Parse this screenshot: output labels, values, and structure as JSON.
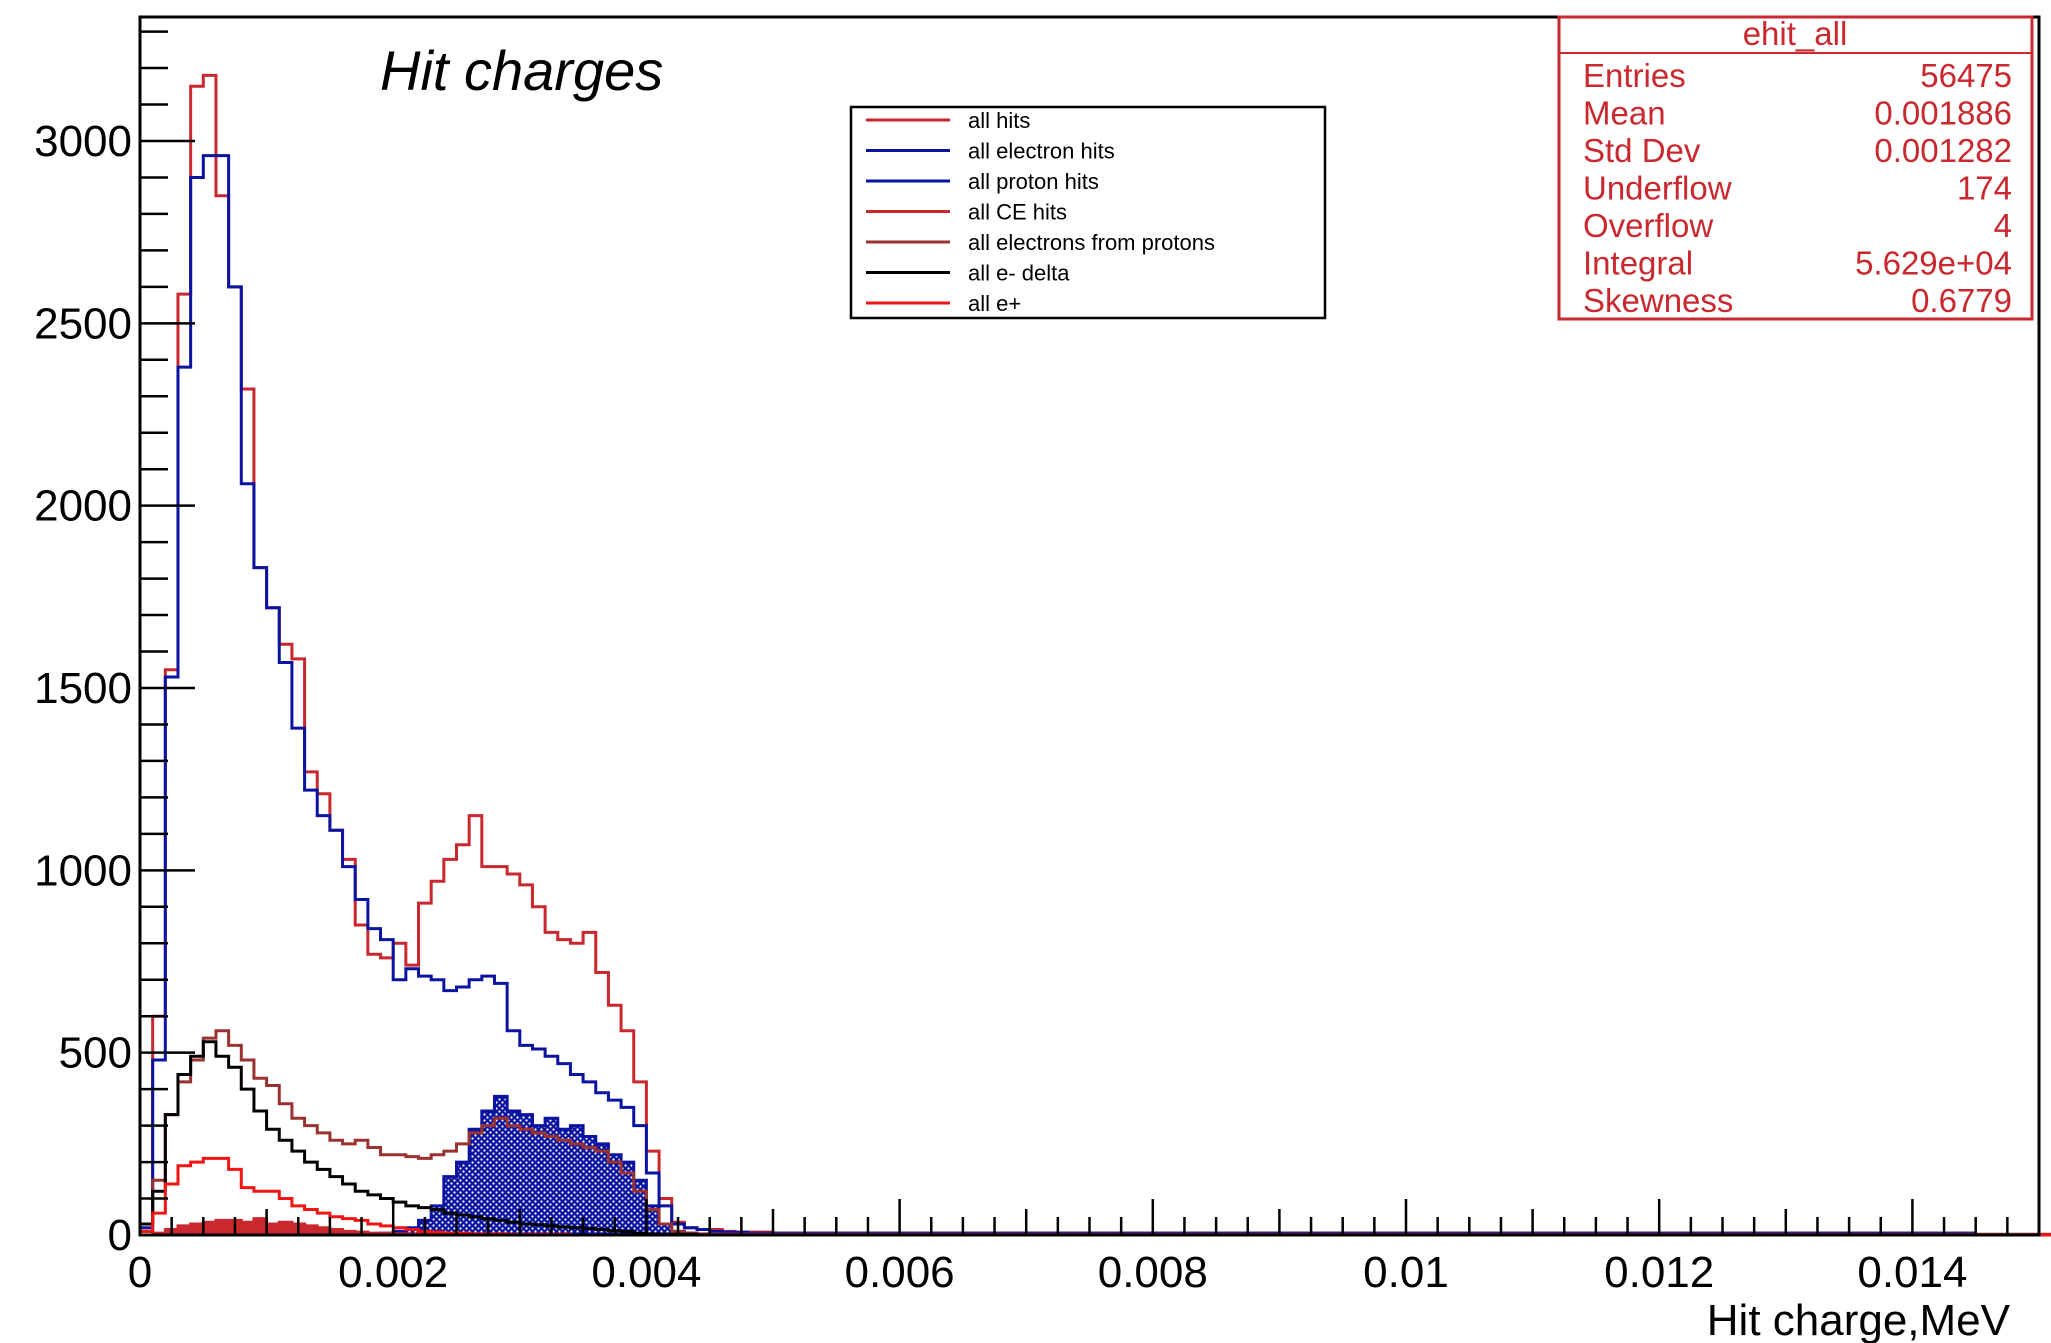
{
  "chart_data": {
    "type": "histogram",
    "title": "Hit charges",
    "xlabel": "Hit charge,MeV",
    "ylabel": "",
    "xlim": [
      0,
      0.015
    ],
    "ylim": [
      0,
      3340
    ],
    "bin_width": 0.0001,
    "x_ticks": [
      {
        "value": 0,
        "label": "0"
      },
      {
        "value": 0.002,
        "label": "0.002"
      },
      {
        "value": 0.004,
        "label": "0.004"
      },
      {
        "value": 0.006,
        "label": "0.006"
      },
      {
        "value": 0.008,
        "label": "0.008"
      },
      {
        "value": 0.01,
        "label": "0.01"
      },
      {
        "value": 0.012,
        "label": "0.012"
      },
      {
        "value": 0.014,
        "label": "0.014"
      }
    ],
    "y_ticks": [
      {
        "value": 0,
        "label": "0"
      },
      {
        "value": 500,
        "label": "500"
      },
      {
        "value": 1000,
        "label": "1000"
      },
      {
        "value": 1500,
        "label": "1500"
      },
      {
        "value": 2000,
        "label": "2000"
      },
      {
        "value": 2500,
        "label": "2500"
      },
      {
        "value": 3000,
        "label": "3000"
      }
    ],
    "legend": {
      "position": "top-center",
      "entries": [
        {
          "label": "all hits",
          "color": "#c8282e"
        },
        {
          "label": "all electron hits",
          "color": "#0a14a0"
        },
        {
          "label": "all proton hits",
          "color": "#0a14a0"
        },
        {
          "label": "all CE hits",
          "color": "#c8282e"
        },
        {
          "label": "all electrons from protons",
          "color": "#9b3232"
        },
        {
          "label": "all e- delta",
          "color": "#000000"
        },
        {
          "label": "all e+",
          "color": "#f01414"
        }
      ]
    },
    "stats_box": {
      "title": "ehit_all",
      "rows": [
        {
          "label": "Entries",
          "value": "56475"
        },
        {
          "label": "Mean",
          "value": "0.001886"
        },
        {
          "label": "Std Dev",
          "value": "0.001282"
        },
        {
          "label": "Underflow",
          "value": "174"
        },
        {
          "label": "Overflow",
          "value": "4"
        },
        {
          "label": "Integral",
          "value": "5.629e+04"
        },
        {
          "label": "Skewness",
          "value": "0.6779"
        }
      ]
    },
    "series": [
      {
        "name": "all hits",
        "color": "#c8282e",
        "fill": false,
        "values": [
          30,
          600,
          1550,
          2580,
          3150,
          3180,
          2850,
          2600,
          2320,
          1830,
          1720,
          1620,
          1580,
          1270,
          1210,
          1110,
          1030,
          850,
          770,
          760,
          800,
          740,
          910,
          970,
          1030,
          1070,
          1150,
          1010,
          1010,
          990,
          960,
          900,
          830,
          810,
          800,
          830,
          720,
          630,
          560,
          420,
          230,
          100,
          35,
          20,
          15,
          15,
          10,
          8,
          8,
          8,
          5,
          5,
          5,
          5,
          5,
          5,
          5,
          5,
          5,
          5,
          5,
          5,
          5,
          5,
          5,
          5,
          5,
          5,
          5,
          5,
          5,
          5,
          5,
          5,
          5,
          5,
          5,
          5,
          5,
          5,
          5,
          5,
          5,
          5,
          5,
          5,
          5,
          5,
          5,
          5,
          5,
          5,
          5,
          5,
          5,
          5,
          5,
          5,
          5,
          5,
          5,
          5,
          5,
          5,
          5,
          5,
          5,
          5,
          5,
          5,
          5,
          5,
          5,
          5,
          5,
          5,
          5,
          5,
          5,
          5,
          5,
          5,
          5,
          5,
          5,
          5,
          5,
          5,
          5,
          5,
          5,
          5,
          5,
          5,
          5,
          5,
          5,
          5,
          5,
          5,
          5,
          5,
          5,
          5,
          5
        ]
      },
      {
        "name": "all electron hits",
        "color": "#0a14a0",
        "fill": false,
        "values": [
          20,
          480,
          1530,
          2380,
          2900,
          2960,
          2960,
          2600,
          2060,
          1830,
          1720,
          1570,
          1390,
          1220,
          1150,
          1110,
          1010,
          920,
          840,
          810,
          700,
          730,
          710,
          700,
          670,
          680,
          700,
          710,
          690,
          560,
          520,
          510,
          490,
          470,
          440,
          420,
          390,
          370,
          350,
          300,
          170,
          80,
          30,
          20,
          15,
          10,
          8,
          8,
          5,
          5,
          5,
          5,
          5,
          5,
          5,
          5,
          5,
          5,
          5,
          5,
          5,
          5,
          5,
          5,
          5,
          5,
          5,
          5,
          5,
          5,
          5,
          5,
          5,
          5,
          5,
          5,
          5,
          5,
          5,
          5,
          5,
          5,
          5,
          5,
          5,
          5,
          5,
          5,
          5,
          5,
          5,
          5,
          5,
          5,
          5,
          5,
          5,
          5,
          5,
          5,
          5,
          5,
          5,
          5,
          5,
          5,
          5,
          5,
          5,
          5,
          5,
          5,
          5,
          5,
          5,
          5,
          5,
          5,
          5,
          5,
          5,
          5,
          5,
          5,
          5,
          5,
          5,
          5,
          5,
          5,
          5,
          5,
          5,
          5,
          5,
          5,
          5,
          5,
          5,
          5,
          5,
          5,
          5,
          5,
          5
        ]
      },
      {
        "name": "all proton hits",
        "color": "#0a14a0",
        "fill": true,
        "fill_style": "hatch-blue",
        "values": [
          0,
          0,
          0,
          0,
          0,
          0,
          0,
          0,
          0,
          0,
          0,
          0,
          0,
          0,
          0,
          0,
          0,
          0,
          0,
          5,
          10,
          20,
          40,
          80,
          160,
          200,
          290,
          340,
          380,
          340,
          330,
          300,
          320,
          290,
          300,
          270,
          250,
          220,
          200,
          150,
          80,
          30,
          10,
          5,
          0,
          0,
          0,
          0,
          0,
          0,
          0,
          0,
          0,
          0,
          0,
          0,
          0,
          0,
          0,
          0,
          0,
          0,
          0,
          0,
          0,
          0,
          0,
          0,
          0,
          0,
          0,
          0,
          0,
          0,
          0,
          0,
          0,
          0,
          0,
          0,
          0,
          0,
          0,
          0,
          0,
          0,
          0,
          0,
          0,
          0,
          0,
          0,
          0,
          0,
          0,
          0,
          0,
          0,
          0,
          0,
          0,
          0,
          0,
          0,
          0,
          0,
          0,
          0,
          0,
          0,
          0,
          0,
          0,
          0,
          0,
          0,
          0,
          0,
          0,
          0,
          0,
          0,
          0,
          0,
          0,
          0,
          0,
          0,
          0,
          0,
          0,
          0,
          0,
          0,
          0,
          0,
          0,
          0,
          0,
          0,
          0,
          0,
          0,
          0,
          0,
          0,
          0,
          0,
          0,
          0,
          0
        ]
      },
      {
        "name": "all CE hits",
        "color": "#c8282e",
        "fill": true,
        "fill_style": "solid-red",
        "values": [
          0,
          5,
          15,
          25,
          30,
          35,
          40,
          40,
          35,
          45,
          30,
          35,
          30,
          25,
          20,
          15,
          10,
          8,
          5,
          5,
          3,
          2,
          2,
          2,
          0,
          0,
          0,
          0,
          0,
          0,
          0,
          0,
          0,
          0,
          0,
          0,
          0,
          0,
          0,
          0,
          0,
          0,
          0,
          0,
          0,
          0,
          0,
          0,
          0,
          0,
          0,
          0,
          0,
          0,
          0,
          0,
          0,
          0,
          0,
          0,
          0,
          0,
          0,
          0,
          0,
          0,
          0,
          0,
          0,
          0,
          0,
          0,
          0,
          0,
          0,
          0,
          0,
          0,
          0,
          0,
          0,
          0,
          0,
          0,
          0,
          0,
          0,
          0,
          0,
          0,
          0,
          0,
          0,
          0,
          0,
          0,
          0,
          0,
          0,
          0,
          0,
          0,
          0,
          0,
          0,
          0,
          0,
          0,
          0,
          0,
          0,
          0,
          0,
          0,
          0,
          0,
          0,
          0,
          0,
          0,
          0,
          0,
          0,
          0,
          0,
          0,
          0,
          0,
          0,
          0,
          0,
          0,
          0,
          0,
          0,
          0,
          0,
          0,
          0,
          0,
          0,
          0,
          0,
          0,
          0,
          0,
          0,
          0,
          0,
          0,
          0
        ]
      },
      {
        "name": "all electrons from protons",
        "color": "#9b3232",
        "fill": false,
        "values": [
          10,
          150,
          330,
          420,
          480,
          540,
          560,
          520,
          480,
          430,
          410,
          360,
          320,
          300,
          280,
          260,
          250,
          260,
          240,
          220,
          220,
          215,
          210,
          220,
          230,
          250,
          280,
          300,
          320,
          300,
          290,
          280,
          270,
          260,
          250,
          240,
          230,
          200,
          170,
          120,
          70,
          30,
          10,
          5,
          3,
          2,
          2,
          2,
          2,
          2,
          2,
          2,
          2,
          2,
          2,
          2,
          2,
          2,
          2,
          2,
          2,
          2,
          2,
          2,
          2,
          2,
          2,
          2,
          2,
          2,
          2,
          2,
          2,
          2,
          2,
          2,
          2,
          2,
          2,
          2,
          2,
          2,
          2,
          2,
          2,
          2,
          2,
          2,
          2,
          2,
          2,
          2,
          2,
          2,
          2,
          2,
          2,
          2,
          2,
          2,
          2,
          2,
          2,
          2,
          2,
          2,
          2,
          2,
          2,
          2,
          2,
          2,
          2,
          2,
          2,
          2,
          2,
          2,
          2,
          2,
          2,
          2,
          2,
          2,
          2,
          2,
          2,
          2,
          2,
          2,
          2,
          2,
          2,
          2,
          2,
          2,
          2,
          2,
          2,
          2,
          2,
          2,
          2,
          2,
          2,
          2,
          2,
          2,
          2,
          2,
          2
        ]
      },
      {
        "name": "all e- delta",
        "color": "#000000",
        "fill": false,
        "values": [
          30,
          120,
          330,
          440,
          490,
          530,
          490,
          460,
          400,
          340,
          290,
          260,
          230,
          200,
          180,
          160,
          140,
          120,
          110,
          100,
          90,
          80,
          75,
          70,
          60,
          55,
          50,
          45,
          40,
          35,
          30,
          28,
          25,
          22,
          20,
          18,
          15,
          12,
          10,
          5,
          3,
          2,
          2,
          2,
          0,
          0,
          0,
          0,
          0,
          0,
          0,
          0,
          0,
          0,
          0,
          0,
          0,
          0,
          0,
          0,
          0,
          0,
          0,
          0,
          0,
          0,
          0,
          0,
          0,
          0,
          0,
          0,
          0,
          0,
          0,
          0,
          0,
          0,
          0,
          0,
          0,
          0,
          0,
          0,
          0,
          0,
          0,
          0,
          0,
          0,
          0,
          0,
          0,
          0,
          0,
          0,
          0,
          0,
          0,
          0,
          0,
          0,
          0,
          0,
          0,
          0,
          0,
          0,
          0,
          0,
          0,
          0,
          0,
          0,
          0,
          0,
          0,
          0,
          0,
          0,
          0,
          0,
          0,
          0,
          0,
          0,
          0,
          0,
          0,
          0,
          0,
          0,
          0,
          0,
          0,
          0,
          0,
          0,
          0,
          0,
          0,
          0,
          0,
          0,
          0,
          0,
          0,
          0,
          0,
          0,
          0
        ]
      },
      {
        "name": "all e+",
        "color": "#f01414",
        "fill": false,
        "values": [
          10,
          60,
          140,
          190,
          200,
          210,
          210,
          180,
          130,
          120,
          120,
          100,
          80,
          70,
          60,
          50,
          45,
          40,
          30,
          25,
          20,
          15,
          10,
          8,
          5,
          5,
          3,
          3,
          3,
          2,
          2,
          2,
          2,
          2,
          0,
          0,
          0,
          0,
          0,
          0,
          0,
          0,
          0,
          0,
          0,
          0,
          0,
          0,
          0,
          0,
          0,
          0,
          0,
          0,
          0,
          0,
          0,
          0,
          0,
          0,
          0,
          0,
          0,
          0,
          0,
          0,
          0,
          0,
          0,
          0,
          0,
          0,
          0,
          0,
          0,
          0,
          0,
          0,
          0,
          0,
          0,
          0,
          0,
          0,
          0,
          0,
          0,
          0,
          0,
          0,
          0,
          0,
          0,
          0,
          0,
          0,
          0,
          0,
          0,
          0,
          0,
          0,
          0,
          0,
          0,
          0,
          0,
          0,
          0,
          0,
          0,
          0,
          0,
          0,
          0,
          0,
          0,
          0,
          0,
          0,
          0,
          0,
          0,
          0,
          0,
          0,
          0,
          0,
          0,
          0,
          0,
          0,
          0,
          0,
          0,
          0,
          0,
          0,
          0,
          0,
          0,
          0,
          0,
          0,
          0,
          0,
          0,
          0,
          0,
          0,
          0
        ]
      }
    ]
  }
}
